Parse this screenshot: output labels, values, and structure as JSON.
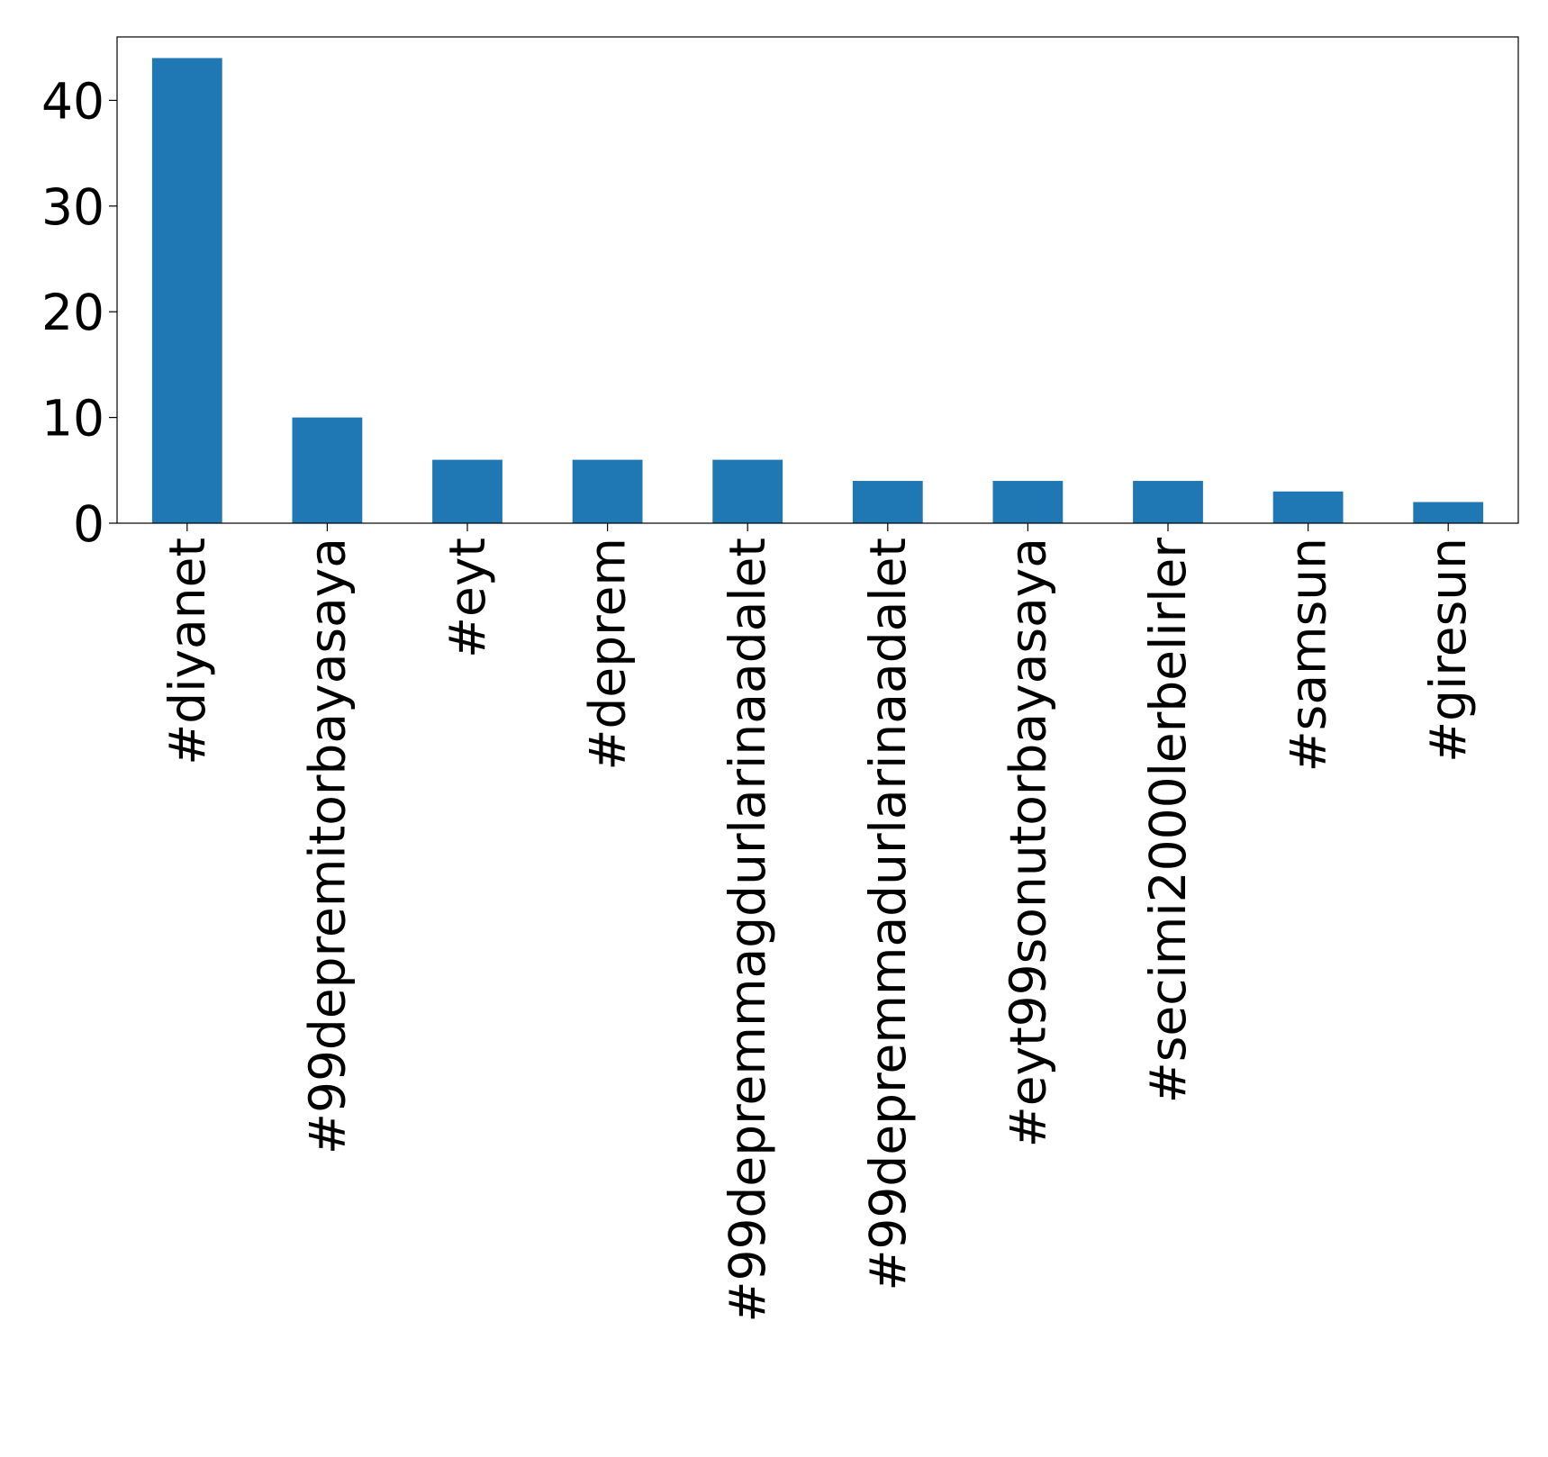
{
  "chart_data": {
    "type": "bar",
    "title": "",
    "xlabel": "",
    "ylabel": "",
    "categories": [
      "#diyanet",
      "#99depremitorbayasaya",
      "#eyt",
      "#deprem",
      "#99depremmagdurlarinaadalet",
      "#99depremmadurlarinaadalet",
      "#eyt99sonutorbayasaya",
      "#secimi2000lerbelirler",
      "#samsun",
      "#giresun"
    ],
    "values": [
      44,
      10,
      6,
      6,
      6,
      4,
      4,
      4,
      3,
      2
    ],
    "ylim": [
      0,
      46
    ],
    "yticks": [
      0,
      10,
      20,
      30,
      40
    ],
    "bar_color": "#1f77b4",
    "grid": false,
    "legend": "none"
  }
}
